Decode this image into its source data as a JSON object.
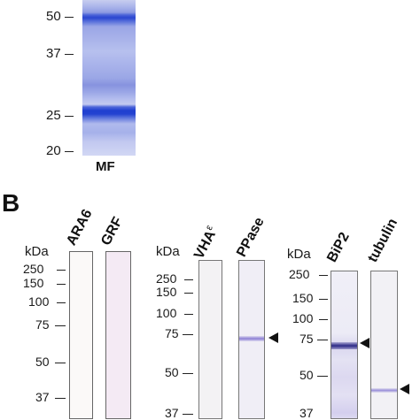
{
  "panel_a": {
    "markers": [
      "50",
      "37",
      "25",
      "20"
    ],
    "lane_label": "MF"
  },
  "panel_b": {
    "panel_label": "B",
    "unit_label": "kDa",
    "group1": {
      "markers": [
        "250",
        "150",
        "100",
        "75",
        "50",
        "37"
      ],
      "lanes": [
        "ARA6",
        "GRF"
      ]
    },
    "group2": {
      "markers": [
        "250",
        "150",
        "100",
        "75",
        "50",
        "37"
      ],
      "lanes": [
        "VHA",
        "PPase"
      ],
      "vha_superscript": "ε"
    },
    "group3": {
      "markers": [
        "250",
        "150",
        "100",
        "75",
        "50",
        "37"
      ],
      "lanes": [
        "BiP2",
        "tubulin"
      ]
    }
  },
  "colors": {
    "coomassie_dark": "#1f3fd0",
    "coomassie_light": "#b8c2ee",
    "blot_band": "#7a6ccf",
    "membrane_tint": "#f4eef7"
  }
}
